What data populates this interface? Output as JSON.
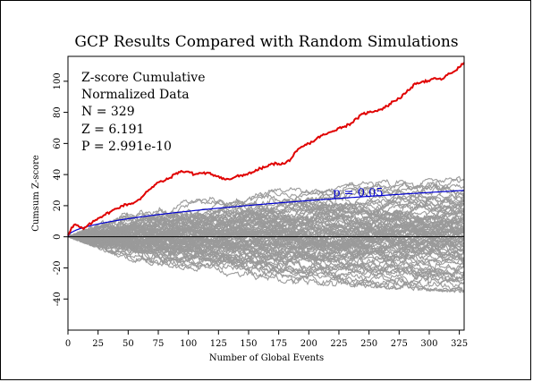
{
  "chart_data": {
    "type": "line",
    "title": "GCP Results Compared with Random Simulations",
    "xlabel": "Number of Global Events",
    "ylabel": "Cumsum Z-score",
    "xlim": [
      0,
      329
    ],
    "ylim": [
      -60,
      116
    ],
    "x_ticks": [
      0,
      25,
      50,
      75,
      100,
      125,
      150,
      175,
      200,
      225,
      250,
      275,
      300,
      325
    ],
    "y_ticks": [
      -40,
      -20,
      0,
      20,
      40,
      60,
      80,
      100
    ],
    "grid": false,
    "annotation": {
      "lines": [
        "Z-score Cumulative",
        "Normalized Data",
        "N = 329",
        "Z = 6.191",
        "P = 2.991e-10"
      ]
    },
    "series": [
      {
        "role": "observed",
        "color": "#e00000",
        "x": [
          0,
          3,
          6,
          10,
          13,
          16,
          20,
          25,
          30,
          35,
          40,
          45,
          50,
          55,
          60,
          65,
          70,
          75,
          80,
          85,
          90,
          95,
          100,
          105,
          110,
          115,
          120,
          125,
          130,
          135,
          140,
          145,
          150,
          155,
          160,
          165,
          170,
          175,
          180,
          185,
          190,
          195,
          200,
          205,
          210,
          215,
          220,
          225,
          230,
          235,
          240,
          245,
          250,
          255,
          260,
          265,
          270,
          275,
          280,
          285,
          290,
          295,
          300,
          305,
          310,
          315,
          320,
          325,
          329
        ],
        "y": [
          1,
          6,
          8,
          6,
          5,
          7,
          9,
          12,
          14,
          16,
          18,
          20,
          21,
          22,
          24,
          29,
          32,
          35,
          36,
          38,
          41,
          42,
          42,
          40,
          41,
          41,
          40,
          39,
          37,
          37,
          39,
          39,
          41,
          42,
          44,
          45,
          47,
          47,
          47,
          50,
          55,
          58,
          60,
          62,
          65,
          66,
          68,
          70,
          71,
          73,
          76,
          79,
          80,
          81,
          82,
          84,
          87,
          89,
          92,
          96,
          99,
          100,
          100,
          102,
          101,
          104,
          106,
          109,
          112
        ]
      },
      {
        "role": "p-threshold",
        "name": "p = 0.05",
        "color": "#0000d0",
        "formula": "1.645*sqrt(n)"
      }
    ],
    "simulations": {
      "color": "#9a9a9a",
      "count": 90,
      "n": 329,
      "envelope_upper": [
        [
          0,
          0
        ],
        [
          50,
          18
        ],
        [
          100,
          24
        ],
        [
          150,
          29
        ],
        [
          200,
          33
        ],
        [
          250,
          36
        ],
        [
          300,
          38
        ],
        [
          329,
          39
        ]
      ],
      "envelope_lower": [
        [
          0,
          0
        ],
        [
          50,
          -16
        ],
        [
          100,
          -22
        ],
        [
          150,
          -28
        ],
        [
          200,
          -31
        ],
        [
          250,
          -33
        ],
        [
          300,
          -35
        ],
        [
          329,
          -36
        ]
      ]
    }
  }
}
